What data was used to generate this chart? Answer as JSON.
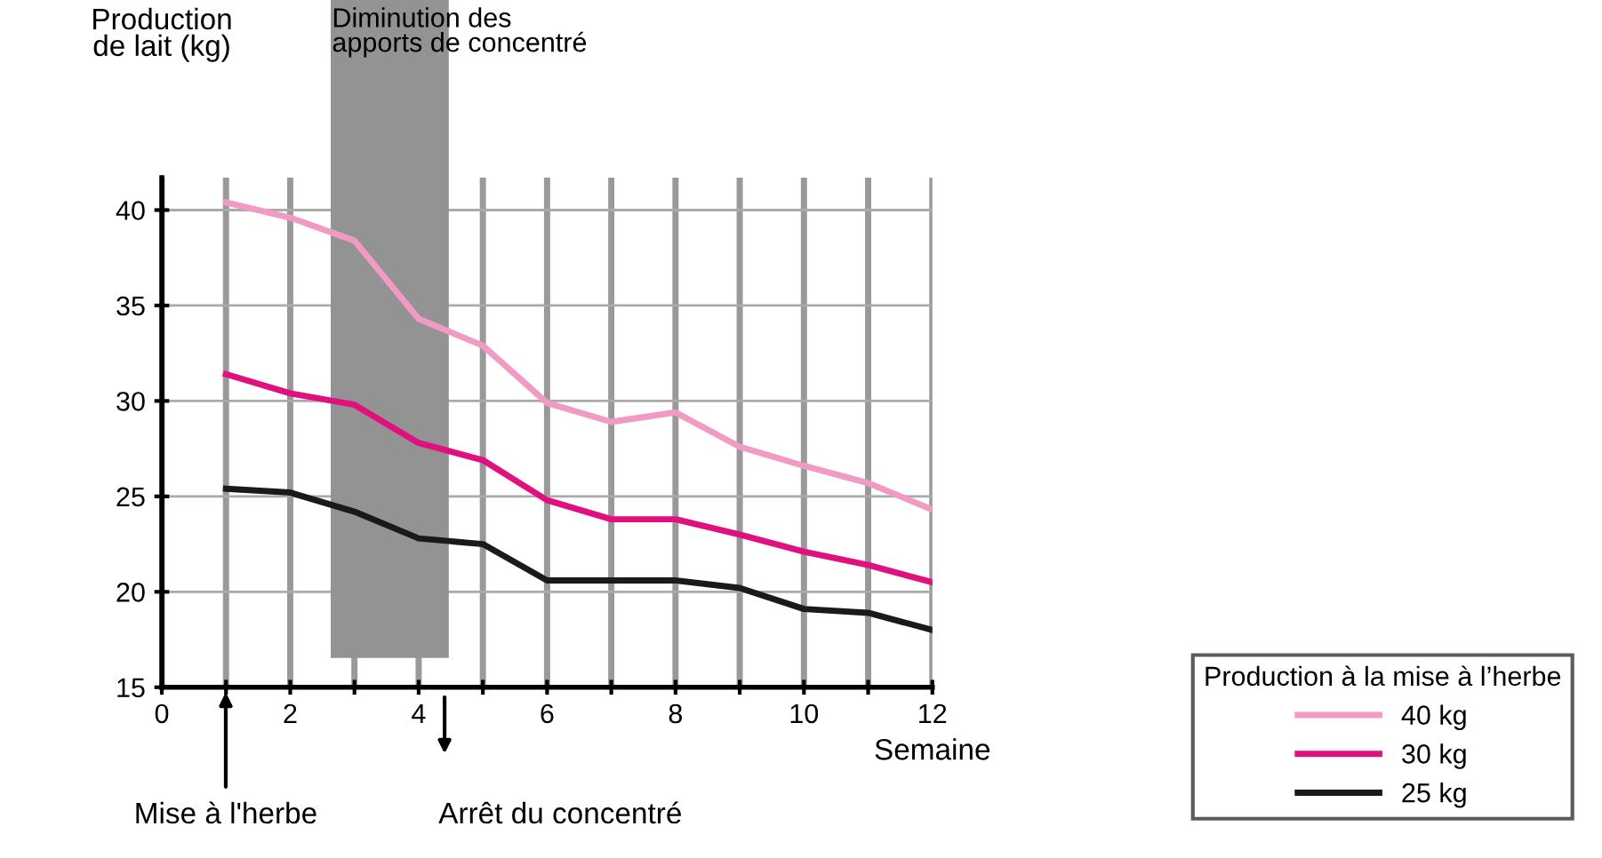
{
  "chart_data": {
    "type": "line",
    "xlabel": "Semaine",
    "ylabel": "Production\nde lait (kg)",
    "legend_title": "Production à la mise à l’herbe",
    "x": [
      1,
      2,
      3,
      4,
      5,
      6,
      7,
      8,
      9,
      10,
      11,
      12
    ],
    "series": [
      {
        "name": "40 kg",
        "color": "#f09ac4",
        "values": [
          40.4,
          39.6,
          38.4,
          34.3,
          32.9,
          29.9,
          28.9,
          29.4,
          27.6,
          26.6,
          25.7,
          24.3
        ]
      },
      {
        "name": "30 kg",
        "color": "#e0117f",
        "values": [
          31.4,
          30.4,
          29.8,
          27.8,
          26.9,
          24.8,
          23.8,
          23.8,
          23.0,
          22.1,
          21.4,
          20.5
        ]
      },
      {
        "name": "25 kg",
        "color": "#1a1a1a",
        "values": [
          25.4,
          25.2,
          24.2,
          22.8,
          22.5,
          20.6,
          20.6,
          20.6,
          20.2,
          19.1,
          18.9,
          18.0
        ]
      }
    ],
    "xlim": [
      0,
      12
    ],
    "ylim": [
      15,
      41.7
    ],
    "xticks": [
      0,
      {
        "value": 1,
        "label": null
      },
      2,
      {
        "value": 3,
        "label": null
      },
      4,
      {
        "value": 5,
        "label": null
      },
      6,
      {
        "value": 7,
        "label": null
      },
      8,
      {
        "value": 9,
        "label": null
      },
      10,
      {
        "value": 11,
        "label": null
      },
      12
    ],
    "yticks": [
      15,
      20,
      25,
      30,
      35,
      40
    ],
    "bands": [
      {
        "axis": "x",
        "from": 2.65,
        "to": 4.45,
        "label": "Diminution des\napports de concentré",
        "color": "#939393"
      }
    ],
    "annotations": [
      "Mise à l'herbe",
      "Arrêt du concentré"
    ],
    "grid": true,
    "legend": "bottom right",
    "marker": "none",
    "line_style": "solid"
  }
}
